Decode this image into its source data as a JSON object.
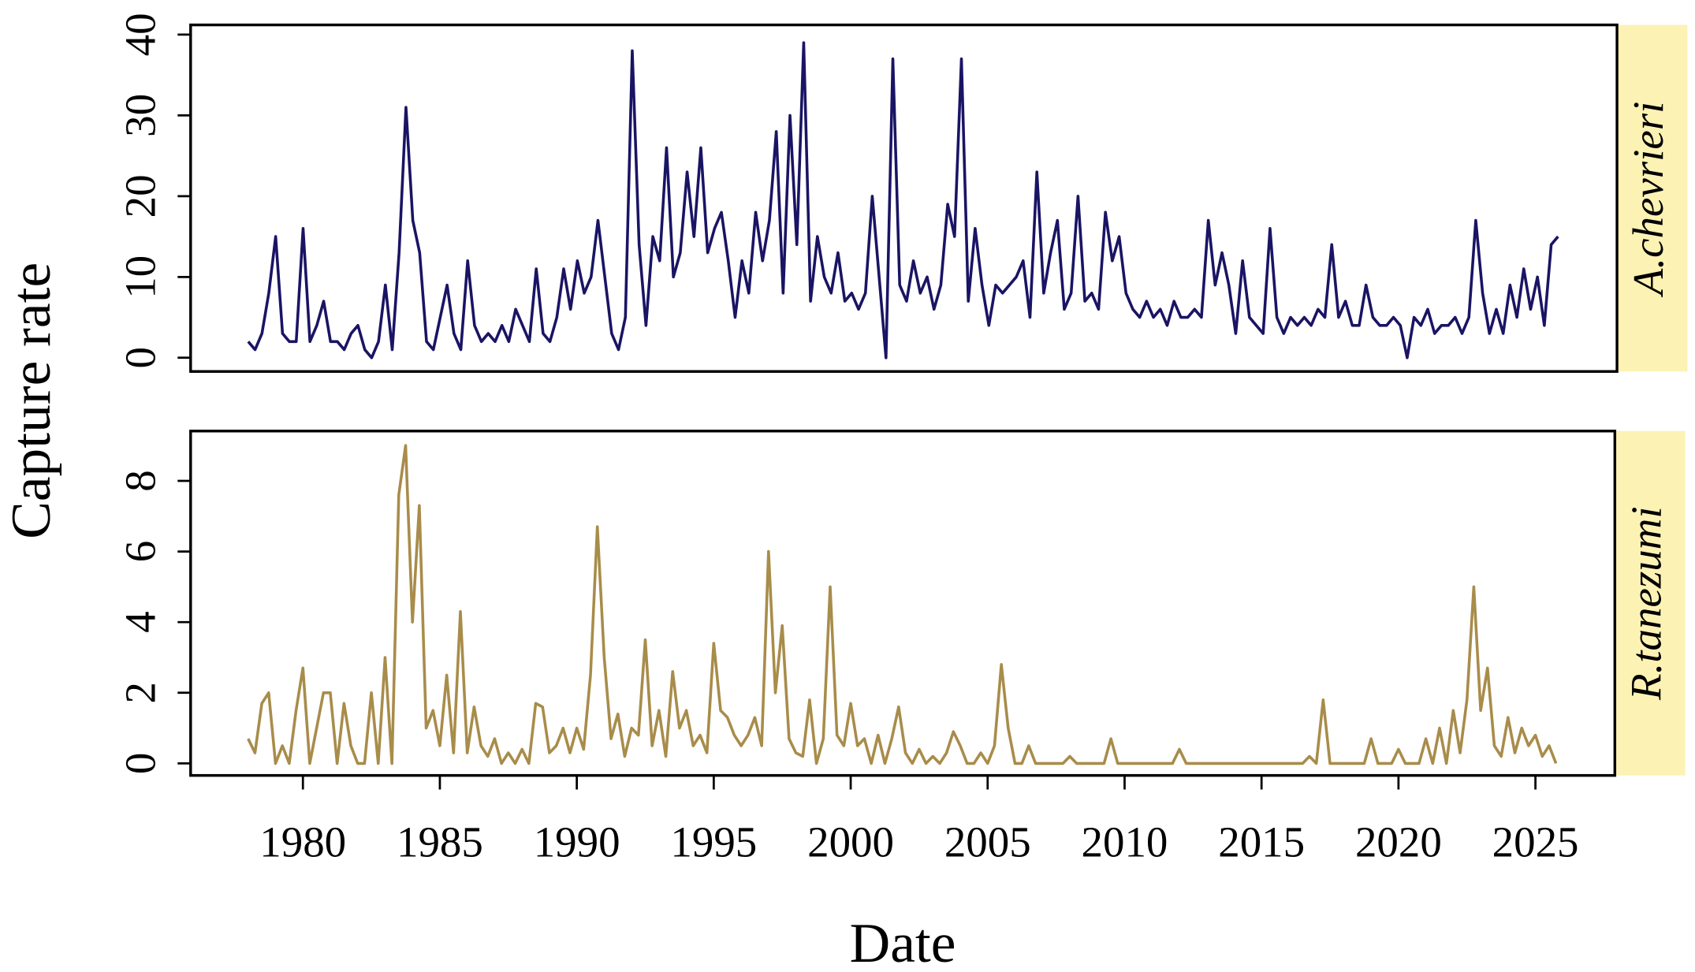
{
  "chart_data": [
    {
      "type": "line",
      "ylabel": "Capture rate",
      "xlim": [
        1975.9,
        2027.9
      ],
      "ylim": [
        -1.7,
        41.2
      ],
      "yticks": [
        0,
        10,
        20,
        30,
        40
      ],
      "series": [
        {
          "name": "A.chevrieri",
          "color": "#1a1464",
          "x": [
            1978,
            1978.25,
            1978.5,
            1978.75,
            1979,
            1979.25,
            1979.5,
            1979.75,
            1980,
            1980.25,
            1980.5,
            1980.75,
            1981,
            1981.25,
            1981.5,
            1981.75,
            1982,
            1982.25,
            1982.5,
            1982.75,
            1983,
            1983.25,
            1983.5,
            1983.75,
            1984,
            1984.25,
            1984.5,
            1984.75,
            1985,
            1985.25,
            1985.5,
            1985.75,
            1986,
            1986.25,
            1986.5,
            1986.75,
            1987,
            1987.25,
            1987.5,
            1987.75,
            1988,
            1988.25,
            1988.5,
            1988.75,
            1989,
            1989.25,
            1989.5,
            1989.75,
            1990,
            1990.25,
            1990.5,
            1990.75,
            1991,
            1991.25,
            1991.5,
            1991.75,
            1992,
            1992.25,
            1992.5,
            1992.75,
            1993,
            1993.25,
            1993.5,
            1993.75,
            1994,
            1994.25,
            1994.5,
            1994.75,
            1995,
            1995.25,
            1995.5,
            1995.75,
            1996,
            1996.25,
            1996.5,
            1996.75,
            1997,
            1997.25,
            1997.5,
            1997.75,
            1998,
            1998.25,
            1998.5,
            1998.75,
            1999,
            1999.25,
            1999.5,
            1999.75,
            2000,
            2000.25,
            2000.5,
            2000.75,
            2001,
            2001.25,
            2001.5,
            2001.75,
            2002,
            2002.25,
            2002.5,
            2002.75,
            2003,
            2003.25,
            2003.5,
            2003.75,
            2004,
            2004.25,
            2004.5,
            2004.75,
            2005,
            2005.25,
            2005.5,
            2005.75,
            2006,
            2006.25,
            2006.5,
            2006.75,
            2007,
            2007.25,
            2007.5,
            2007.75,
            2008,
            2008.25,
            2008.5,
            2008.75,
            2009,
            2009.25,
            2009.5,
            2009.75,
            2010,
            2010.25,
            2010.5,
            2010.75,
            2011,
            2011.25,
            2011.5,
            2011.75,
            2012,
            2012.25,
            2012.5,
            2012.75,
            2013,
            2013.25,
            2013.5,
            2013.75,
            2014,
            2014.25,
            2014.5,
            2014.75,
            2015,
            2015.25,
            2015.5,
            2015.75,
            2016,
            2016.25,
            2016.5,
            2016.75,
            2017,
            2017.25,
            2017.5,
            2017.75,
            2018,
            2018.25,
            2018.5,
            2018.75,
            2019,
            2019.25,
            2019.5,
            2019.75,
            2020,
            2020.25,
            2020.5,
            2020.75,
            2021,
            2021.25,
            2021.5,
            2021.75,
            2022,
            2022.25,
            2022.5,
            2022.75,
            2023,
            2023.25,
            2023.5,
            2023.75,
            2024,
            2024.25,
            2024.5,
            2024.75,
            2025,
            2025.25,
            2025.5,
            2025.75
          ],
          "values": [
            2,
            1,
            3,
            8,
            15,
            3,
            2,
            2,
            16,
            2,
            4,
            7,
            2,
            2,
            1,
            3,
            4,
            1,
            0,
            2,
            9,
            1,
            13,
            31,
            17,
            13,
            2,
            1,
            5,
            9,
            3,
            1,
            12,
            4,
            2,
            3,
            2,
            4,
            2,
            6,
            4,
            2,
            11,
            3,
            2,
            5,
            11,
            6,
            12,
            8,
            10,
            17,
            10,
            3,
            1,
            5,
            38,
            14,
            4,
            15,
            12,
            26,
            10,
            13,
            23,
            15,
            26,
            13,
            16,
            18,
            12,
            5,
            12,
            8,
            18,
            12,
            17,
            28,
            8,
            30,
            14,
            39,
            7,
            15,
            10,
            8,
            13,
            7,
            8,
            6,
            8,
            20,
            10,
            0,
            37,
            9,
            7,
            12,
            8,
            10,
            6,
            9,
            19,
            15,
            37,
            7,
            16,
            9,
            4,
            9,
            8,
            9,
            10,
            12,
            5,
            23,
            8,
            13,
            17,
            6,
            8,
            20,
            7,
            8,
            6,
            18,
            12,
            15,
            8,
            6,
            5,
            7,
            5,
            6,
            4,
            7,
            5,
            5,
            6,
            5,
            17,
            9,
            13,
            9,
            3,
            12,
            5,
            4,
            3,
            16,
            5,
            3,
            5,
            4,
            5,
            4,
            6,
            5,
            14,
            5,
            7,
            4,
            4,
            9,
            5,
            4,
            4,
            5,
            4,
            0,
            5,
            4,
            6,
            3,
            4,
            4,
            5,
            3,
            5,
            17,
            8,
            3,
            6,
            3,
            9,
            5,
            11,
            6,
            10,
            4,
            14,
            15
          ]
        }
      ]
    },
    {
      "type": "line",
      "xlabel": "Date",
      "xlim": [
        1975.9,
        2027.9
      ],
      "ylim": [
        -0.34,
        9.41
      ],
      "xticks": [
        1980,
        1985,
        1990,
        1995,
        2000,
        2005,
        2010,
        2015,
        2020,
        2025
      ],
      "yticks": [
        0,
        2,
        4,
        6,
        8
      ],
      "series": [
        {
          "name": "R.tanezumi",
          "color": "#a88c4a",
          "x": [
            1978,
            1978.25,
            1978.5,
            1978.75,
            1979,
            1979.25,
            1979.5,
            1979.75,
            1980,
            1980.25,
            1980.5,
            1980.75,
            1981,
            1981.25,
            1981.5,
            1981.75,
            1982,
            1982.25,
            1982.5,
            1982.75,
            1983,
            1983.25,
            1983.5,
            1983.75,
            1984,
            1984.25,
            1984.5,
            1984.75,
            1985,
            1985.25,
            1985.5,
            1985.75,
            1986,
            1986.25,
            1986.5,
            1986.75,
            1987,
            1987.25,
            1987.5,
            1987.75,
            1988,
            1988.25,
            1988.5,
            1988.75,
            1989,
            1989.25,
            1989.5,
            1989.75,
            1990,
            1990.25,
            1990.5,
            1990.75,
            1991,
            1991.25,
            1991.5,
            1991.75,
            1992,
            1992.25,
            1992.5,
            1992.75,
            1993,
            1993.25,
            1993.5,
            1993.75,
            1994,
            1994.25,
            1994.5,
            1994.75,
            1995,
            1995.25,
            1995.5,
            1995.75,
            1996,
            1996.25,
            1996.5,
            1996.75,
            1997,
            1997.25,
            1997.5,
            1997.75,
            1998,
            1998.25,
            1998.5,
            1998.75,
            1999,
            1999.25,
            1999.5,
            1999.75,
            2000,
            2000.25,
            2000.5,
            2000.75,
            2001,
            2001.25,
            2001.5,
            2001.75,
            2002,
            2002.25,
            2002.5,
            2002.75,
            2003,
            2003.25,
            2003.5,
            2003.75,
            2004,
            2004.25,
            2004.5,
            2004.75,
            2005,
            2005.25,
            2005.5,
            2005.75,
            2006,
            2006.25,
            2006.5,
            2006.75,
            2007,
            2007.25,
            2007.5,
            2007.75,
            2008,
            2008.25,
            2008.5,
            2008.75,
            2009,
            2009.25,
            2009.5,
            2009.75,
            2010,
            2010.25,
            2010.5,
            2010.75,
            2011,
            2011.25,
            2011.5,
            2011.75,
            2012,
            2012.25,
            2012.5,
            2012.75,
            2013,
            2013.25,
            2013.5,
            2013.75,
            2014,
            2014.25,
            2014.5,
            2014.75,
            2015,
            2015.25,
            2015.5,
            2015.75,
            2016,
            2016.25,
            2016.5,
            2016.75,
            2017,
            2017.25,
            2017.5,
            2017.75,
            2018,
            2018.25,
            2018.5,
            2018.75,
            2019,
            2019.25,
            2019.5,
            2019.75,
            2020,
            2020.25,
            2020.5,
            2020.75,
            2021,
            2021.25,
            2021.5,
            2021.75,
            2022,
            2022.25,
            2022.5,
            2022.75,
            2023,
            2023.25,
            2023.5,
            2023.75,
            2024,
            2024.25,
            2024.5,
            2024.75,
            2025,
            2025.25,
            2025.5,
            2025.75
          ],
          "values": [
            0.7,
            0.3,
            1.7,
            2.0,
            0,
            0.5,
            0,
            1.5,
            2.7,
            0,
            1.0,
            2.0,
            2.0,
            0,
            1.7,
            0.5,
            0,
            0,
            2.0,
            0,
            3.0,
            0,
            7.6,
            9.0,
            4.0,
            7.3,
            1.0,
            1.5,
            0.5,
            2.5,
            0.3,
            4.3,
            0.3,
            1.6,
            0.5,
            0.2,
            0.7,
            0,
            0.3,
            0,
            0.4,
            0,
            1.7,
            1.6,
            0.3,
            0.5,
            1.0,
            0.3,
            1.0,
            0.4,
            2.5,
            6.7,
            3.0,
            0.7,
            1.4,
            0.2,
            1.0,
            0.8,
            3.5,
            0.5,
            1.5,
            0.2,
            2.6,
            1.0,
            1.5,
            0.5,
            0.8,
            0.3,
            3.4,
            1.5,
            1.3,
            0.8,
            0.5,
            0.8,
            1.3,
            0.5,
            6.0,
            2.0,
            3.9,
            0.7,
            0.3,
            0.2,
            1.8,
            0,
            0.7,
            5.0,
            0.8,
            0.5,
            1.7,
            0.5,
            0.7,
            0,
            0.8,
            0,
            0.7,
            1.6,
            0.3,
            0,
            0.4,
            0,
            0.2,
            0,
            0.3,
            0.9,
            0.5,
            0,
            0,
            0.3,
            0,
            0.5,
            2.8,
            1.0,
            0,
            0,
            0.5,
            0,
            0,
            0,
            0,
            0,
            0.2,
            0,
            0,
            0,
            0,
            0,
            0.7,
            0,
            0,
            0,
            0,
            0,
            0,
            0,
            0,
            0,
            0.4,
            0,
            0,
            0,
            0,
            0,
            0,
            0,
            0,
            0,
            0,
            0,
            0,
            0,
            0,
            0,
            0,
            0,
            0,
            0.2,
            0,
            1.8,
            0,
            0,
            0,
            0,
            0,
            0,
            0.7,
            0,
            0,
            0,
            0.4,
            0,
            0,
            0,
            0.7,
            0,
            1.0,
            0,
            1.5,
            0.3,
            1.8,
            5.0,
            1.5,
            2.7,
            0.5,
            0.2,
            1.3,
            0.3,
            1.0,
            0.5,
            0.8,
            0.2,
            0.5,
            0
          ]
        }
      ]
    }
  ]
}
